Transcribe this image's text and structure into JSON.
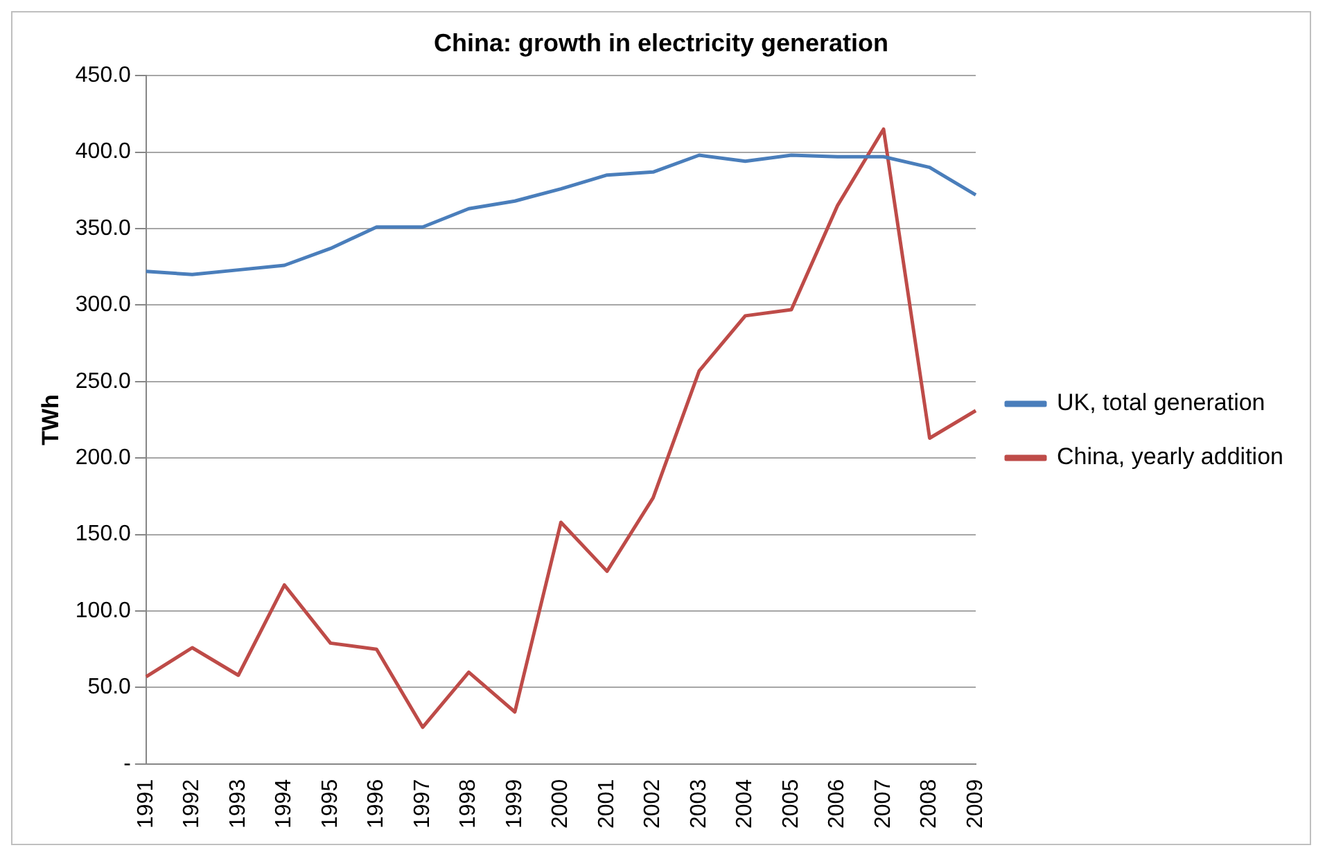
{
  "chart_data": {
    "type": "line",
    "title": "China: growth in electricity generation",
    "ylabel": "TWh",
    "categories": [
      "1991",
      "1992",
      "1993",
      "1994",
      "1995",
      "1996",
      "1997",
      "1998",
      "1999",
      "2000",
      "2001",
      "2002",
      "2003",
      "2004",
      "2005",
      "2006",
      "2007",
      "2008",
      "2009"
    ],
    "series": [
      {
        "name": "UK, total generation",
        "color": "#4a7ebb",
        "values": [
          322,
          320,
          323,
          326,
          337,
          351,
          351,
          363,
          368,
          376,
          385,
          387,
          398,
          394,
          398,
          397,
          397,
          390,
          372
        ]
      },
      {
        "name": "China, yearly addition",
        "color": "#be4b48",
        "values": [
          57,
          76,
          58,
          117,
          79,
          75,
          24,
          60,
          34,
          158,
          126,
          174,
          257,
          293,
          297,
          365,
          415,
          213,
          231
        ]
      }
    ],
    "ylim": [
      0,
      450
    ],
    "yticks": [
      {
        "value": 0,
        "label": "-"
      },
      {
        "value": 50,
        "label": "50.0"
      },
      {
        "value": 100,
        "label": "100.0"
      },
      {
        "value": 150,
        "label": "150.0"
      },
      {
        "value": 200,
        "label": "200.0"
      },
      {
        "value": 250,
        "label": "250.0"
      },
      {
        "value": 300,
        "label": "300.0"
      },
      {
        "value": 350,
        "label": "350.0"
      },
      {
        "value": 400,
        "label": "400.0"
      },
      {
        "value": 450,
        "label": "450.0"
      }
    ],
    "grid": "y",
    "legend": "right",
    "marker": "none",
    "line_style": "solid"
  }
}
